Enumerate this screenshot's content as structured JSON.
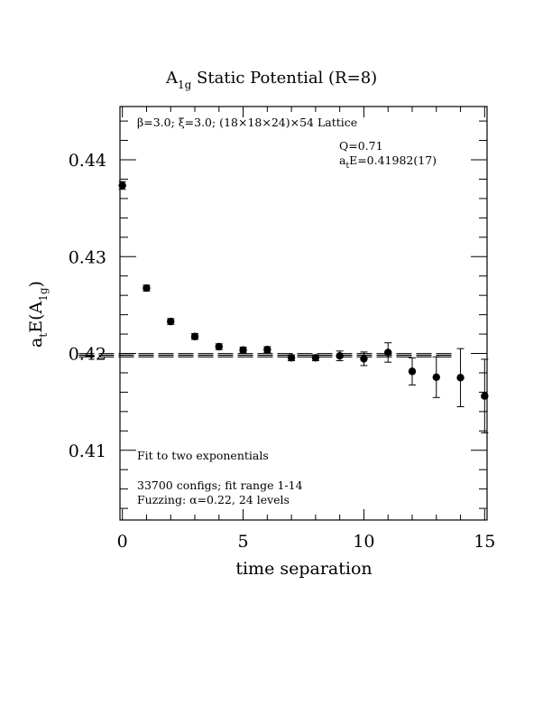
{
  "chart_data": {
    "type": "scatter",
    "title_main": "A",
    "title_sub": "1g",
    "title_rest": " Static Potential (R=8)",
    "xlabel": "time separation",
    "ylabel_main": "a",
    "ylabel_sub1": "t",
    "ylabel_mid": "E(A",
    "ylabel_sub2": "1g",
    "ylabel_end": ")",
    "xlim": [
      -0.1,
      15.1
    ],
    "ylim": [
      0.4028,
      0.4455
    ],
    "xticks": [
      0,
      5,
      10,
      15
    ],
    "xtick_labels": [
      "0",
      "5",
      "10",
      "15"
    ],
    "yticks": [
      0.41,
      0.42,
      0.43,
      0.44
    ],
    "ytick_labels": [
      "0.41",
      "0.42",
      "0.43",
      "0.44"
    ],
    "lattice_prefix": "β=3.0; ξ=3.0; (18×18×24)×54 Lattice",
    "q_label": "Q=0.71",
    "energy_a": "a",
    "energy_sub": "t",
    "energy_rest": "E=0.41982(17)",
    "fit_label": "Fit to two exponentials",
    "configs_label": "33700 configs; fit range 1-14",
    "fuzzing_label": "Fuzzing: α=0.22, 24 levels",
    "fit_value": 0.41982,
    "fit_err": 0.00017,
    "fit_range": [
      1,
      14
    ],
    "points": [
      {
        "x": 0,
        "y": 0.43735,
        "err": 0.0004
      },
      {
        "x": 1,
        "y": 0.42675,
        "err": 0.0003
      },
      {
        "x": 2,
        "y": 0.4233,
        "err": 0.0003
      },
      {
        "x": 3,
        "y": 0.42175,
        "err": 0.0003
      },
      {
        "x": 4,
        "y": 0.4207,
        "err": 0.0003
      },
      {
        "x": 5,
        "y": 0.42035,
        "err": 0.0003
      },
      {
        "x": 6,
        "y": 0.4204,
        "err": 0.0003
      },
      {
        "x": 7,
        "y": 0.41955,
        "err": 0.0003
      },
      {
        "x": 8,
        "y": 0.41955,
        "err": 0.0003
      },
      {
        "x": 9,
        "y": 0.41975,
        "err": 0.0005
      },
      {
        "x": 10,
        "y": 0.41945,
        "err": 0.0007
      },
      {
        "x": 11,
        "y": 0.4201,
        "err": 0.001
      },
      {
        "x": 12,
        "y": 0.41815,
        "err": 0.0014
      },
      {
        "x": 13,
        "y": 0.41755,
        "err": 0.0021
      },
      {
        "x": 14,
        "y": 0.4175,
        "err": 0.003
      },
      {
        "x": 15,
        "y": 0.4156,
        "err": 0.0038
      }
    ]
  }
}
